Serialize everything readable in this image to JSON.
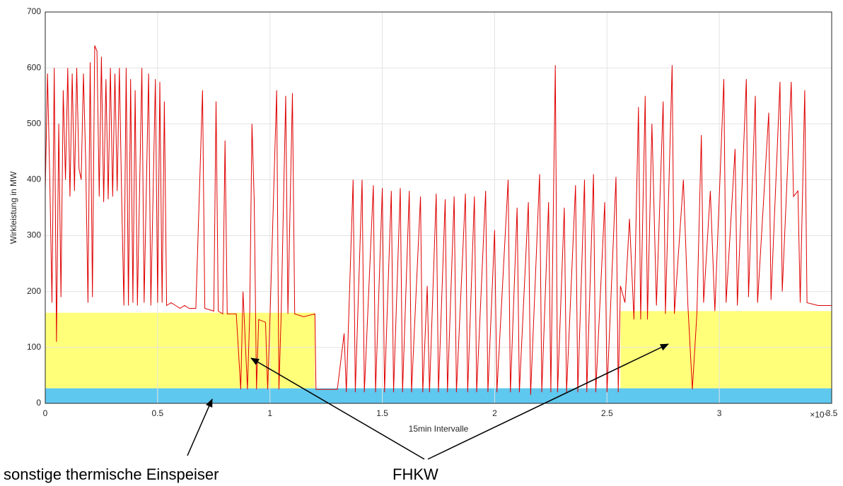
{
  "chart_data": {
    "type": "line",
    "xlabel": "15min Intervalle",
    "ylabel": "Wirkleistung in MW",
    "x_multiplier": "×10⁴",
    "xlim": [
      0,
      35000
    ],
    "ylim": [
      0,
      700
    ],
    "xticks": [
      0,
      {
        "value": 5000,
        "label": "0.5"
      },
      {
        "value": 10000,
        "label": "1"
      },
      {
        "value": 15000,
        "label": "1.5"
      },
      {
        "value": 20000,
        "label": "2"
      },
      {
        "value": 25000,
        "label": "2.5"
      },
      {
        "value": 30000,
        "label": "3"
      },
      {
        "value": 35000,
        "label": "3.5"
      }
    ],
    "yticks": [
      0,
      100,
      200,
      300,
      400,
      500,
      600,
      700
    ],
    "grid": true,
    "regions": [
      {
        "xlim": [
          0,
          35000
        ],
        "ylim": [
          0,
          27
        ],
        "color": "#5fc8ef"
      },
      {
        "xlim": [
          0,
          12000
        ],
        "ylim": [
          27,
          162
        ],
        "color": "#ffff7a"
      },
      {
        "xlim": [
          25600,
          35000
        ],
        "ylim": [
          27,
          165
        ],
        "color": "#ffff7a"
      }
    ],
    "annotations": [
      "sonstige thermische Einspeiser",
      "FHKW"
    ],
    "series": [
      {
        "color": "#e00000",
        "x": [
          0,
          100,
          200,
          300,
          400,
          500,
          600,
          700,
          800,
          900,
          1000,
          1100,
          1200,
          1300,
          1400,
          1500,
          1600,
          1700,
          1800,
          1900,
          2000,
          2100,
          2200,
          2300,
          2400,
          2500,
          2600,
          2700,
          2800,
          2900,
          3000,
          3100,
          3200,
          3300,
          3400,
          3500,
          3600,
          3700,
          3800,
          3900,
          4000,
          4100,
          4300,
          4400,
          4600,
          4700,
          4900,
          5000,
          5100,
          5200,
          5300,
          5400,
          5600,
          5800,
          6000,
          6200,
          6400,
          6700,
          7000,
          7100,
          7500,
          7600,
          7700,
          7900,
          8000,
          8100,
          8500,
          8700,
          8800,
          9000,
          9100,
          9200,
          9300,
          9400,
          9500,
          9800,
          9900,
          10000,
          10300,
          10400,
          10500,
          10700,
          10800,
          11000,
          11100,
          11500,
          12000,
          12050,
          13000,
          13300,
          13400,
          13700,
          13800,
          14100,
          14200,
          14600,
          14700,
          15000,
          15100,
          15400,
          15500,
          15800,
          15900,
          16200,
          16300,
          16700,
          16800,
          17000,
          17100,
          17400,
          17500,
          17800,
          17900,
          18200,
          18300,
          18700,
          18800,
          19100,
          19200,
          19600,
          19700,
          20000,
          20100,
          20600,
          20700,
          21000,
          21100,
          21500,
          21600,
          22000,
          22100,
          22400,
          22500,
          22700,
          22800,
          23100,
          23200,
          23600,
          23700,
          24000,
          24100,
          24400,
          24500,
          24900,
          25000,
          25400,
          25500,
          25600,
          25800,
          26000,
          26200,
          26400,
          26500,
          26700,
          26800,
          27000,
          27200,
          27500,
          27600,
          27900,
          28000,
          28400,
          28600,
          28800,
          29000,
          29200,
          29300,
          29600,
          29800,
          30200,
          30300,
          30700,
          30800,
          31200,
          31300,
          31600,
          31700,
          32200,
          32300,
          32700,
          32800,
          33200,
          33300,
          33500,
          33600,
          33800,
          33900,
          34400,
          35000
        ],
        "values": [
          380,
          590,
          400,
          180,
          600,
          110,
          500,
          190,
          560,
          400,
          600,
          370,
          590,
          380,
          600,
          420,
          400,
          590,
          430,
          180,
          610,
          190,
          640,
          630,
          370,
          620,
          360,
          580,
          365,
          600,
          370,
          590,
          380,
          600,
          370,
          175,
          600,
          175,
          580,
          180,
          560,
          175,
          600,
          180,
          590,
          175,
          580,
          180,
          575,
          180,
          540,
          175,
          180,
          175,
          170,
          175,
          170,
          170,
          560,
          170,
          165,
          540,
          165,
          160,
          470,
          160,
          160,
          25,
          200,
          25,
          160,
          500,
          360,
          25,
          150,
          145,
          25,
          150,
          560,
          25,
          160,
          550,
          160,
          555,
          160,
          155,
          160,
          25,
          25,
          125,
          20,
          400,
          20,
          400,
          20,
          390,
          20,
          385,
          20,
          380,
          20,
          385,
          20,
          380,
          20,
          370,
          20,
          210,
          20,
          375,
          20,
          365,
          20,
          370,
          20,
          375,
          20,
          370,
          20,
          380,
          20,
          310,
          20,
          400,
          20,
          350,
          20,
          360,
          15,
          410,
          20,
          360,
          20,
          605,
          20,
          350,
          20,
          390,
          20,
          400,
          20,
          410,
          20,
          360,
          20,
          405,
          20,
          210,
          180,
          330,
          150,
          530,
          150,
          550,
          150,
          500,
          175,
          540,
          160,
          605,
          160,
          400,
          175,
          25,
          160,
          480,
          180,
          380,
          165,
          580,
          180,
          455,
          175,
          580,
          190,
          550,
          180,
          520,
          185,
          575,
          200,
          575,
          370,
          380,
          180,
          560,
          180,
          175,
          175
        ]
      }
    ]
  }
}
